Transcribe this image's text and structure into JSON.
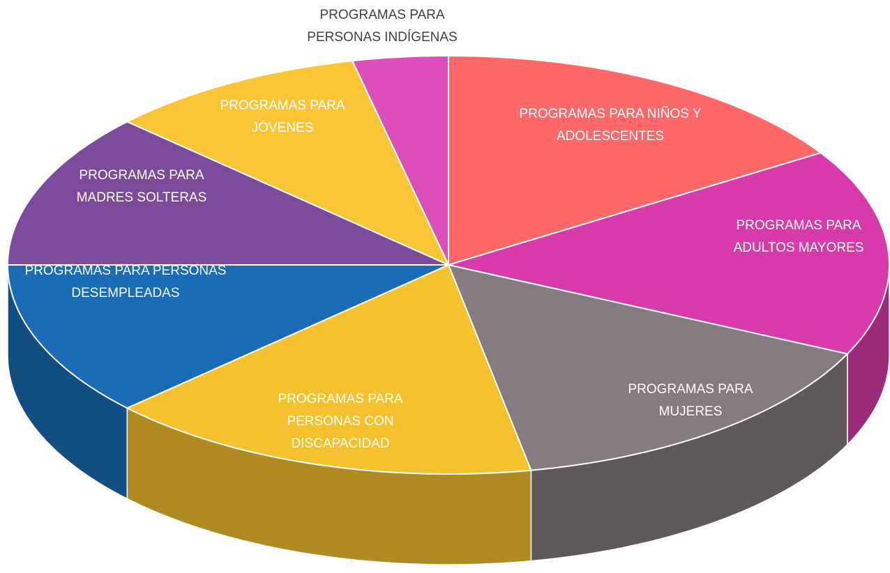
{
  "chart_data": {
    "type": "pie",
    "categories": [
      "PROGRAMAS PARA NIÑOS Y ADOLESCENTES",
      "PROGRAMAS PARA ADULTOS MAYORES",
      "PROGRAMAS PARA MUJERES",
      "PROGRAMAS PARA PERSONAS CON DISCAPACIDAD",
      "PROGRAMAS PARA PERSONAS DESEMPLEADAS",
      "PROGRAMAS PARA MADRES SOLTERAS",
      "PROGRAMAS PARA JÓVENES",
      "PROGRAMAS PARA PERSONAS INDÍGENAS"
    ],
    "values": [
      16,
      16,
      15,
      16,
      12,
      12,
      9.5,
      3.5
    ],
    "colors": [
      "#ff6868",
      "#d93aa9",
      "#857b80",
      "#f5c12f",
      "#1a6cb6",
      "#7d4b9c",
      "#f9c535",
      "#dc4fba"
    ]
  }
}
